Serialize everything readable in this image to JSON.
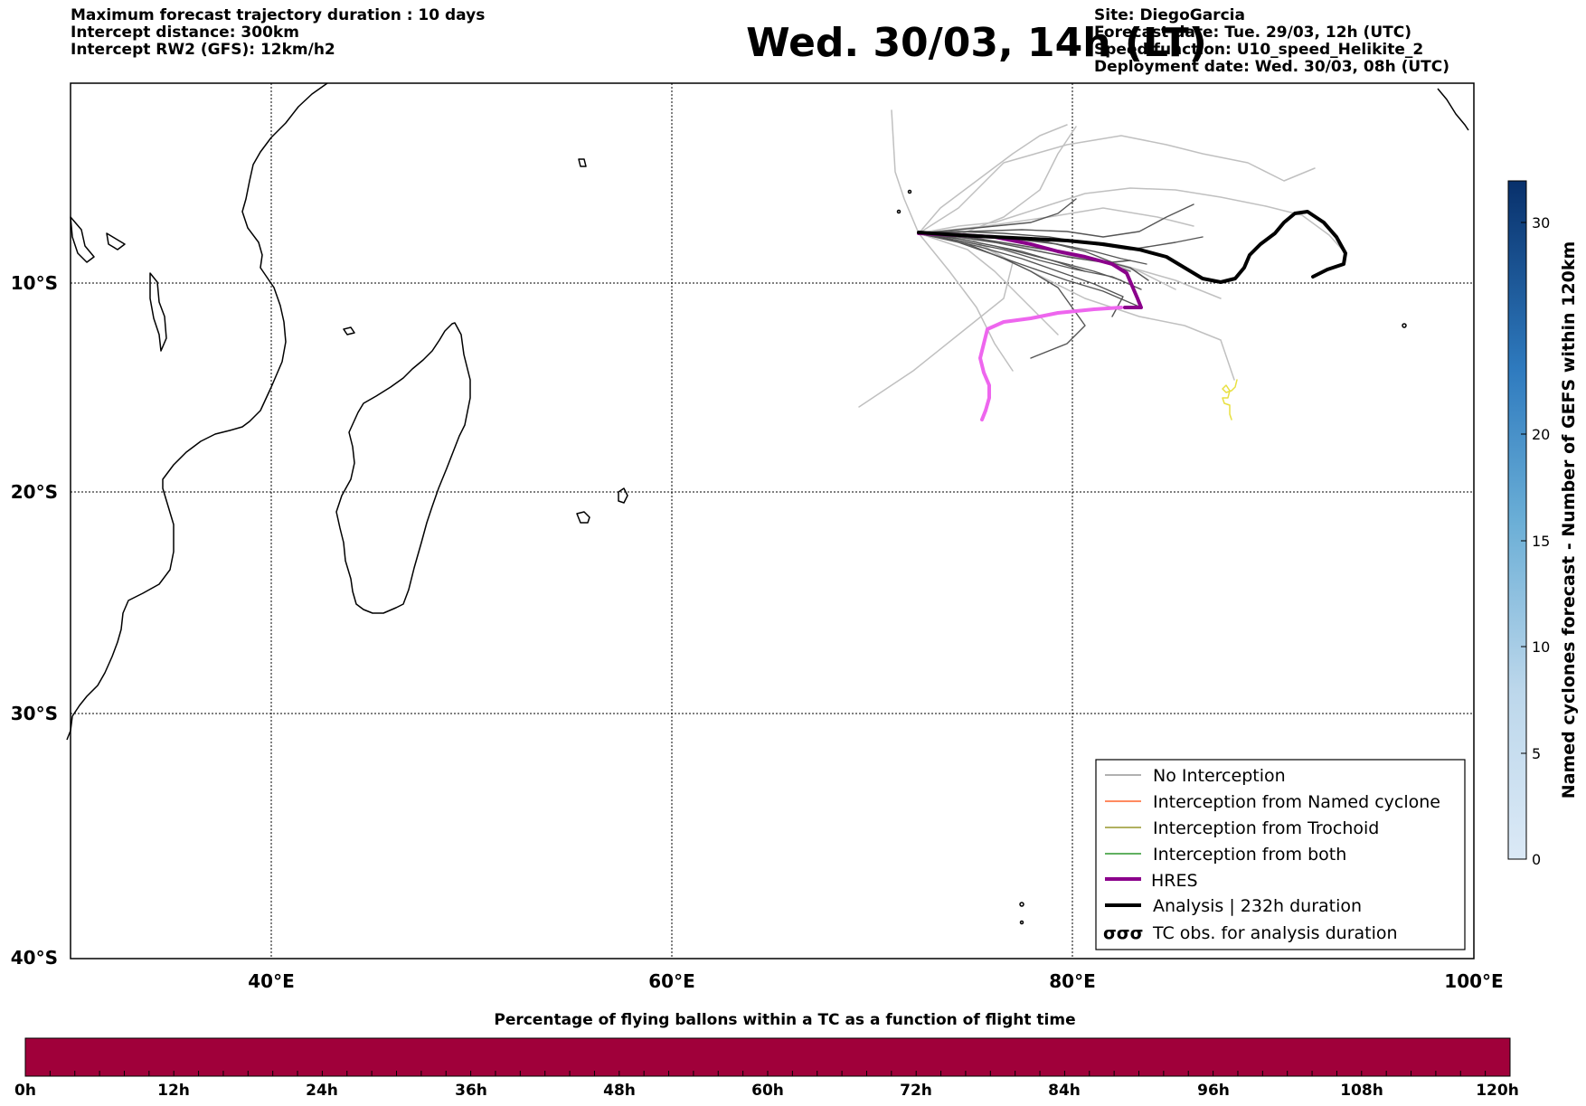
{
  "header": {
    "left_lines": [
      "Maximum forecast trajectory duration : 10 days",
      "Intercept distance: 300km",
      "Intercept RW2 (GFS):  12km/h2"
    ],
    "title": "Wed. 30/03, 14h (LT)",
    "right_lines": [
      "Site: DiegoGarcia",
      "Forecast date: Tue. 29/03, 12h (UTC)",
      "Speed function: U10_speed_Helikite_2",
      "Deployment date: Wed. 30/03, 08h (UTC)"
    ]
  },
  "map": {
    "lon_range": [
      30,
      100
    ],
    "lat_range": [
      -40,
      0
    ],
    "lat_labels": [
      "10°S",
      "20°S",
      "30°S",
      "40°S"
    ],
    "lon_labels": [
      "40°E",
      "60°E",
      "80°E",
      "100°E"
    ],
    "gridline_style": "dotted"
  },
  "legend": {
    "items": [
      {
        "label": "No Interception",
        "color": "#808080",
        "style": "thin-line"
      },
      {
        "label": "Interception from Named cyclone",
        "color": "#ff4500",
        "style": "thin-line"
      },
      {
        "label": "Interception from Trochoid",
        "color": "#808000",
        "style": "thin-line"
      },
      {
        "label": "Interception from both",
        "color": "#008000",
        "style": "thin-line"
      },
      {
        "label": "HRES",
        "color": "#8b008b",
        "style": "thick-line"
      },
      {
        "label": "Analysis | 232h duration",
        "color": "#000000",
        "style": "thick-line"
      },
      {
        "label": "TC obs. for analysis duration",
        "color": "#000000",
        "style": "cyclone-symbols"
      }
    ]
  },
  "colorbar_right": {
    "label": "Named cyclones forecast - Number of GEFS within 120km",
    "ticks": [
      "0",
      "5",
      "10",
      "15",
      "20",
      "30"
    ],
    "color_low": "#dbe9f6",
    "color_high": "#08306b"
  },
  "colorbar_bottom": {
    "title": "Percentage of flying ballons within a TC as a function of flight time",
    "ticks": [
      "0h",
      "12h",
      "24h",
      "36h",
      "48h",
      "60h",
      "72h",
      "84h",
      "96h",
      "108h",
      "120h"
    ],
    "fill_color": "#a0003a"
  },
  "colors": {
    "ensemble_light": "#c0c0c0",
    "ensemble_dark": "#555555",
    "hres_early": "#8b008b",
    "hres_late": "#ee66ee",
    "analysis": "#000000",
    "trochoid_yellow": "#e8e040"
  }
}
